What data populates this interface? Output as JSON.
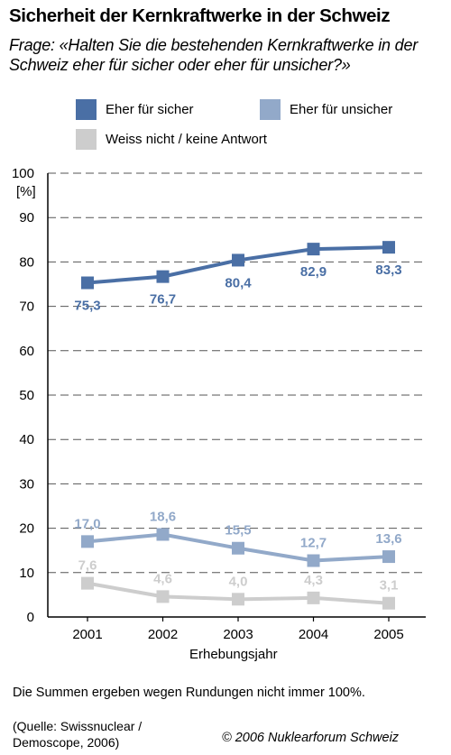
{
  "title": "Sicherheit der Kernkraftwerke in der Schweiz",
  "subtitle": "Frage: «Halten Sie die bestehenden Kernkraftwerke in der Schweiz eher für sicher oder eher für unsicher?»",
  "chart_data": {
    "type": "line",
    "title": "Sicherheit der Kernkraftwerke in der Schweiz",
    "xlabel": "Erhebungsjahr",
    "ylabel": "[%]",
    "x": [
      2001,
      2002,
      2003,
      2004,
      2005
    ],
    "x_tick_labels": [
      "2001",
      "2002",
      "2003",
      "2004",
      "2005"
    ],
    "ylim": [
      0,
      100
    ],
    "y_ticks": [
      0,
      10,
      20,
      30,
      40,
      50,
      60,
      70,
      80,
      90,
      100
    ],
    "y_tick_labels": [
      "0",
      "10",
      "20",
      "30",
      "40",
      "50",
      "60",
      "70",
      "80",
      "90",
      "100"
    ],
    "grid": "horizontal dashed",
    "legend_position": "top",
    "series": [
      {
        "name": "Eher für sicher",
        "color": "#4a6fa5",
        "values": [
          75.3,
          76.7,
          80.4,
          82.9,
          83.3
        ],
        "labels": [
          "75,3",
          "76,7",
          "80,4",
          "82,9",
          "83,3"
        ],
        "label_position": "below"
      },
      {
        "name": "Eher für unsicher",
        "color": "#92a9c9",
        "values": [
          17.0,
          18.6,
          15.5,
          12.7,
          13.6
        ],
        "labels": [
          "17,0",
          "18,6",
          "15,5",
          "12,7",
          "13,6"
        ],
        "label_position": "above"
      },
      {
        "name": "Weiss nicht / keine Antwort",
        "color": "#cdcdcd",
        "values": [
          7.6,
          4.6,
          4.0,
          4.3,
          3.1
        ],
        "labels": [
          "7,6",
          "4,6",
          "4,0",
          "4,3",
          "3,1"
        ],
        "label_position": "above"
      }
    ]
  },
  "note": "Die Summen ergeben wegen Rundungen nicht immer 100%.",
  "source": "(Quelle: Swissnuclear / Demoscope, 2006)",
  "copyright": "© 2006 Nuklearforum Schweiz"
}
